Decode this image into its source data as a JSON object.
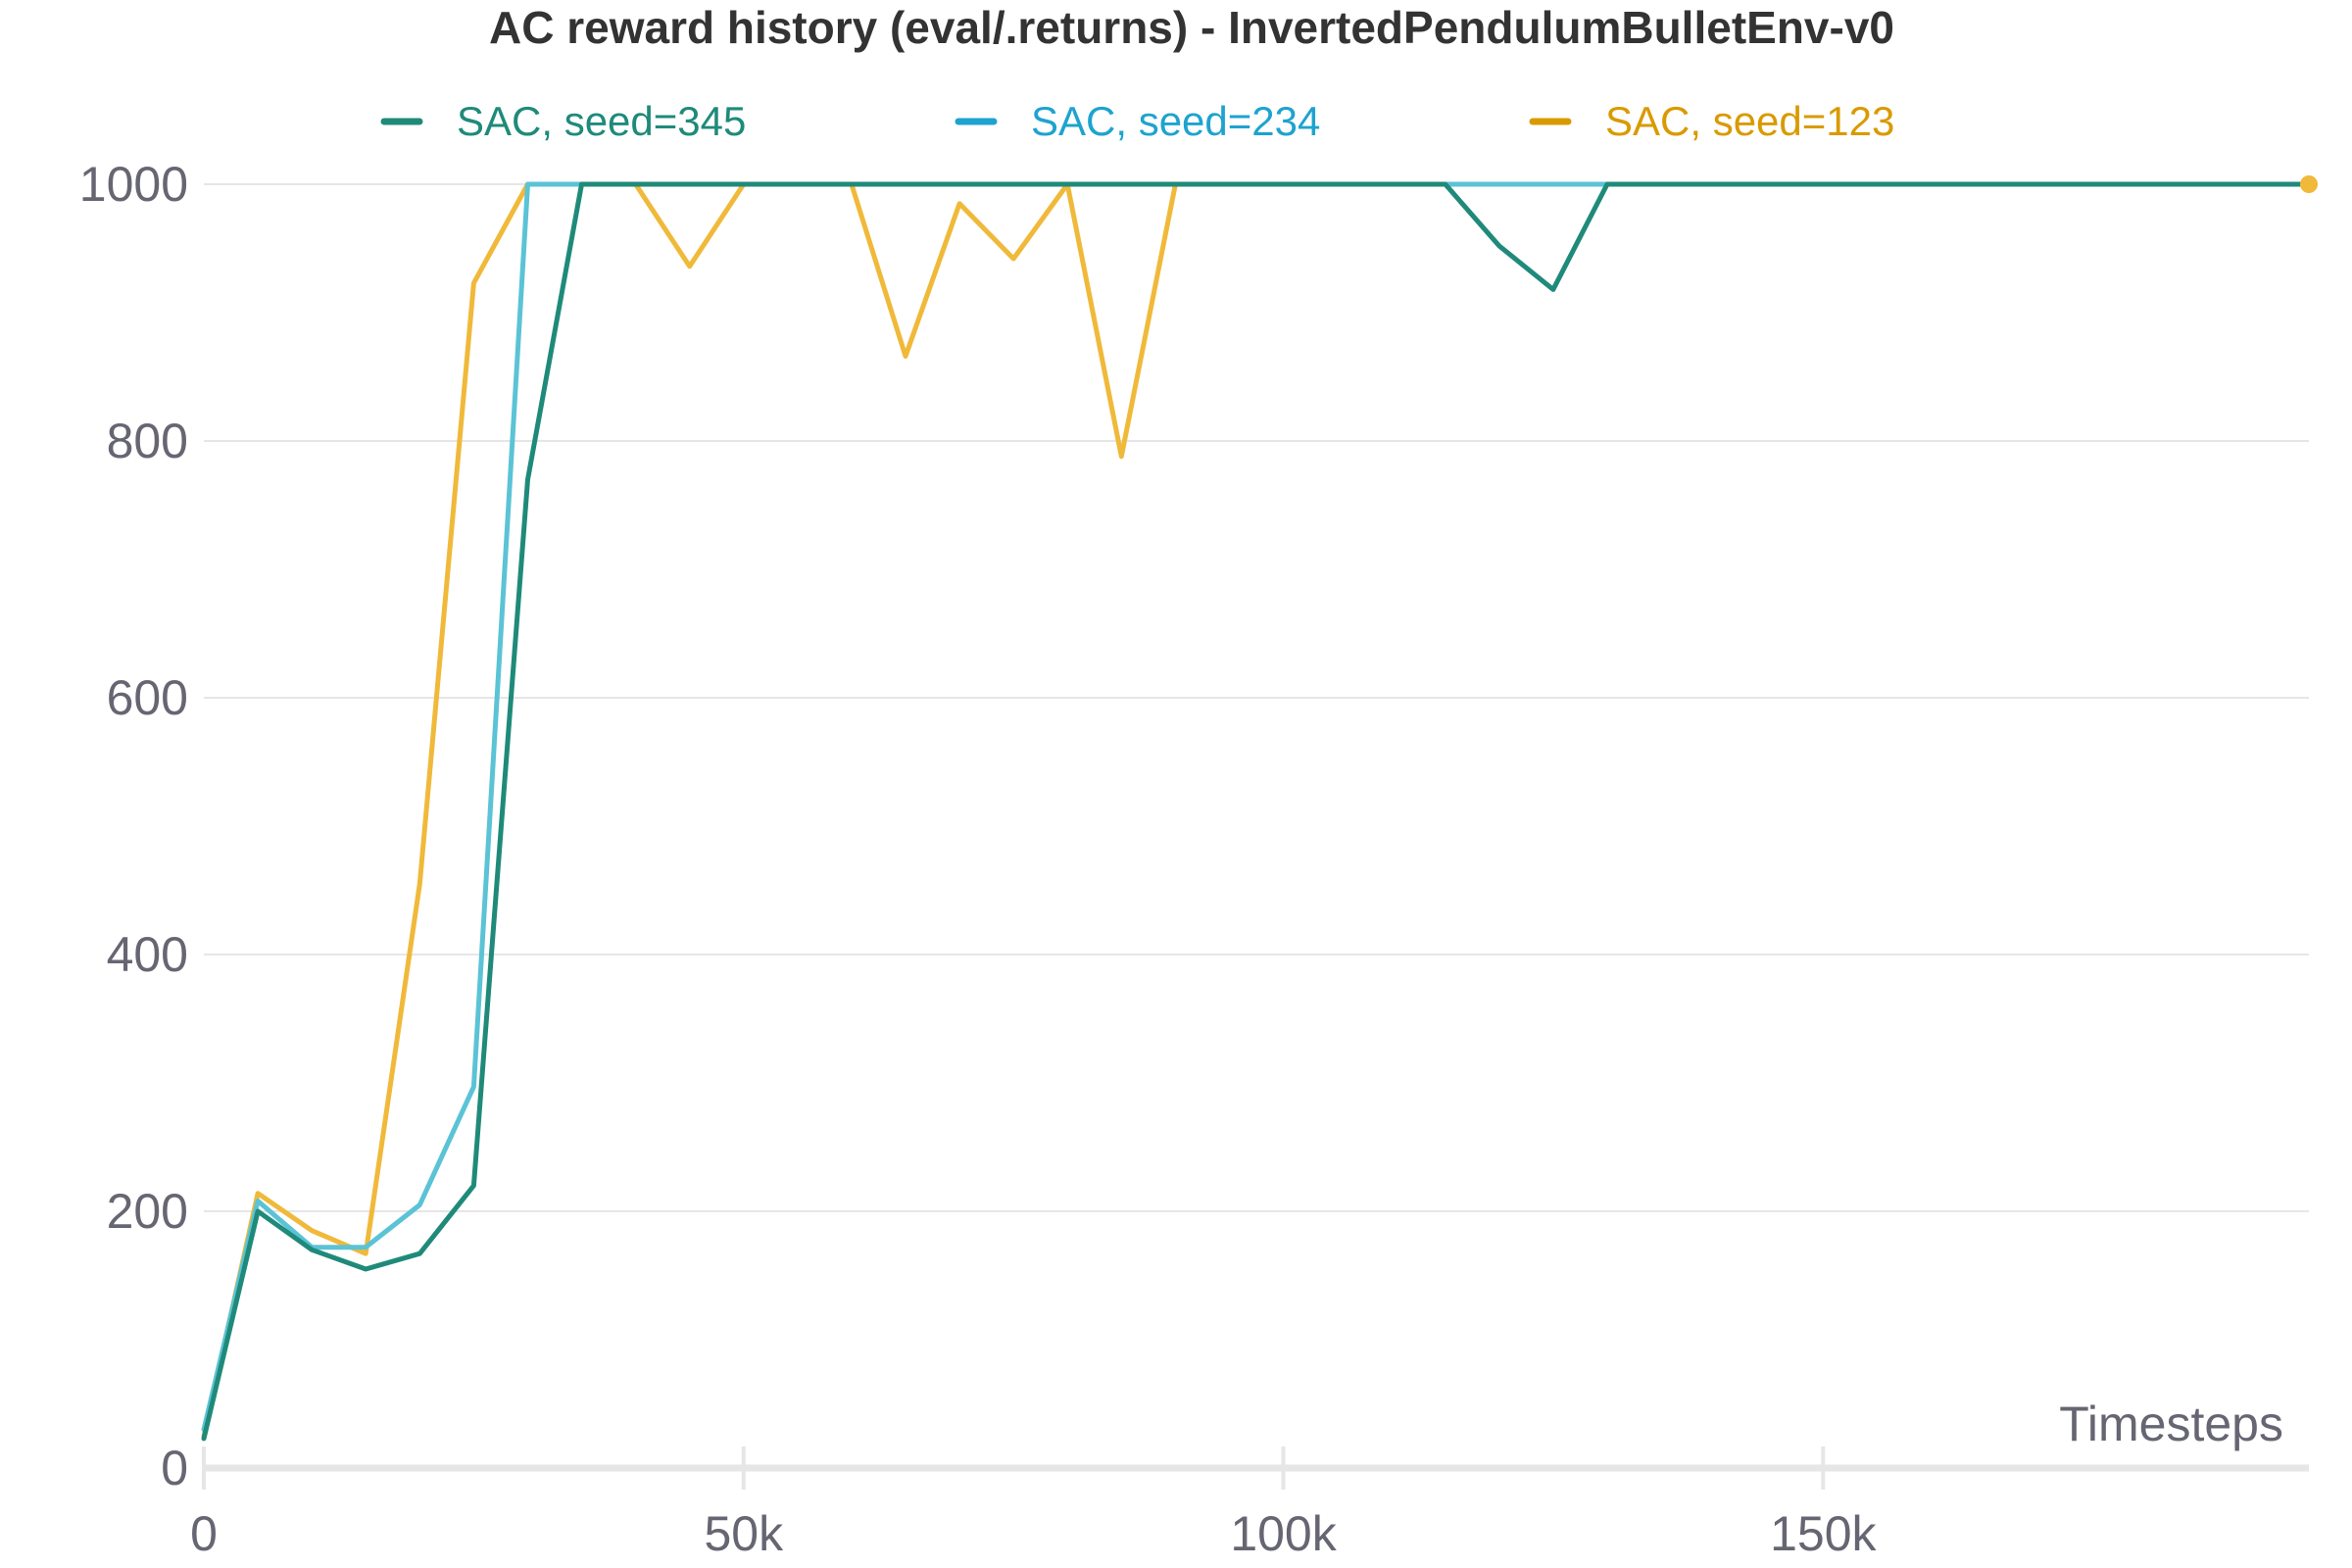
{
  "chart_data": {
    "type": "line",
    "title": "AC reward history (eval/.returns) - InvertedPendulumBulletEnv-v0",
    "xlabel": "Timesteps",
    "ylabel": "",
    "xlim": [
      0,
      195000
    ],
    "ylim": [
      0,
      1000
    ],
    "x_ticks": [
      0,
      50000,
      100000,
      150000
    ],
    "x_tick_labels": [
      "0",
      "50k",
      "100k",
      "150k"
    ],
    "y_ticks": [
      0,
      200,
      400,
      600,
      800,
      1000
    ],
    "y_tick_labels": [
      "0",
      "200",
      "400",
      "600",
      "800",
      "1000"
    ],
    "grid": true,
    "legend_position": "top",
    "x": [
      0,
      5000,
      10000,
      15000,
      20000,
      25000,
      30000,
      35000,
      40000,
      45000,
      50000,
      55000,
      60000,
      65000,
      70000,
      75000,
      80000,
      85000,
      90000,
      95000,
      100000,
      105000,
      110000,
      115000,
      120000,
      125000,
      130000,
      135000,
      140000,
      145000,
      150000,
      155000,
      160000,
      165000,
      170000,
      175000,
      180000,
      185000,
      190000,
      195000
    ],
    "series": [
      {
        "name": "SAC, seed=345",
        "color": "#1f8a7a",
        "legend_color": "#1f8a7a",
        "values": [
          23,
          200,
          170,
          155,
          167,
          220,
          770,
          1000,
          1000,
          1000,
          1000,
          1000,
          1000,
          1000,
          1000,
          1000,
          1000,
          1000,
          1000,
          1000,
          1000,
          1000,
          1000,
          1000,
          952,
          918,
          1000,
          1000,
          1000,
          1000,
          1000,
          1000,
          1000,
          1000,
          1000,
          1000,
          1000,
          1000,
          1000,
          1000
        ]
      },
      {
        "name": "SAC, seed=234",
        "color": "#5bc3d6",
        "legend_color": "#1ea3cf",
        "values": [
          30,
          208,
          172,
          172,
          205,
          297,
          1000,
          1000,
          1000,
          1000,
          1000,
          1000,
          1000,
          1000,
          1000,
          1000,
          1000,
          1000,
          1000,
          1000,
          1000,
          1000,
          1000,
          1000,
          1000,
          1000,
          1000,
          1000,
          1000,
          1000,
          1000,
          1000,
          1000,
          1000,
          1000,
          1000,
          1000,
          1000,
          1000,
          1000
        ]
      },
      {
        "name": "SAC, seed=123",
        "color": "#f0b93a",
        "legend_color": "#d99a00",
        "values": [
          25,
          214,
          185,
          167,
          455,
          923,
          1000,
          1000,
          1000,
          936,
          1000,
          1000,
          1000,
          866,
          985,
          942,
          1000,
          788,
          1000,
          1000,
          1000,
          1000,
          1000,
          1000,
          1000,
          1000,
          1000,
          1000,
          1000,
          1000,
          1000,
          1000,
          1000,
          1000,
          1000,
          1000,
          1000,
          1000,
          1000,
          1000
        ]
      }
    ]
  }
}
